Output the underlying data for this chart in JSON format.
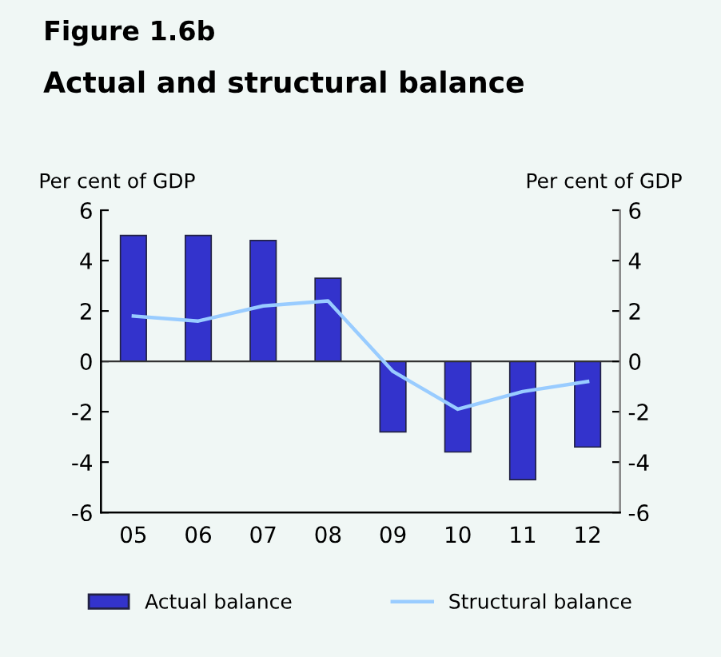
{
  "chart_data": {
    "type": "bar",
    "title": "Figure 1.6b",
    "subtitle": "Actual and structural balance",
    "ylabel": "Per cent of GDP",
    "y2label": "Per cent of GDP",
    "categories": [
      "05",
      "06",
      "07",
      "08",
      "09",
      "10",
      "11",
      "12"
    ],
    "series": [
      {
        "name": "Actual balance",
        "color": "#3333cc",
        "values": [
          5.0,
          5.0,
          4.8,
          3.3,
          -2.8,
          -3.6,
          -4.7,
          -3.4
        ]
      },
      {
        "name": "Structural balance",
        "type": "line",
        "color": "#99ccff",
        "values": [
          1.8,
          1.6,
          2.2,
          2.4,
          -0.4,
          -1.9,
          -1.2,
          -0.8
        ]
      }
    ],
    "ylim": [
      -6,
      6
    ],
    "yticks": [
      -6,
      -4,
      -2,
      0,
      2,
      4,
      6
    ],
    "y2lim": [
      -6,
      6
    ],
    "y2ticks": [
      -6,
      -4,
      -2,
      0,
      2,
      4,
      6
    ],
    "ref_lines": [
      {
        "axis": "y",
        "value": 0,
        "color": "#333333"
      }
    ],
    "legend": "bottom",
    "grid": false
  }
}
